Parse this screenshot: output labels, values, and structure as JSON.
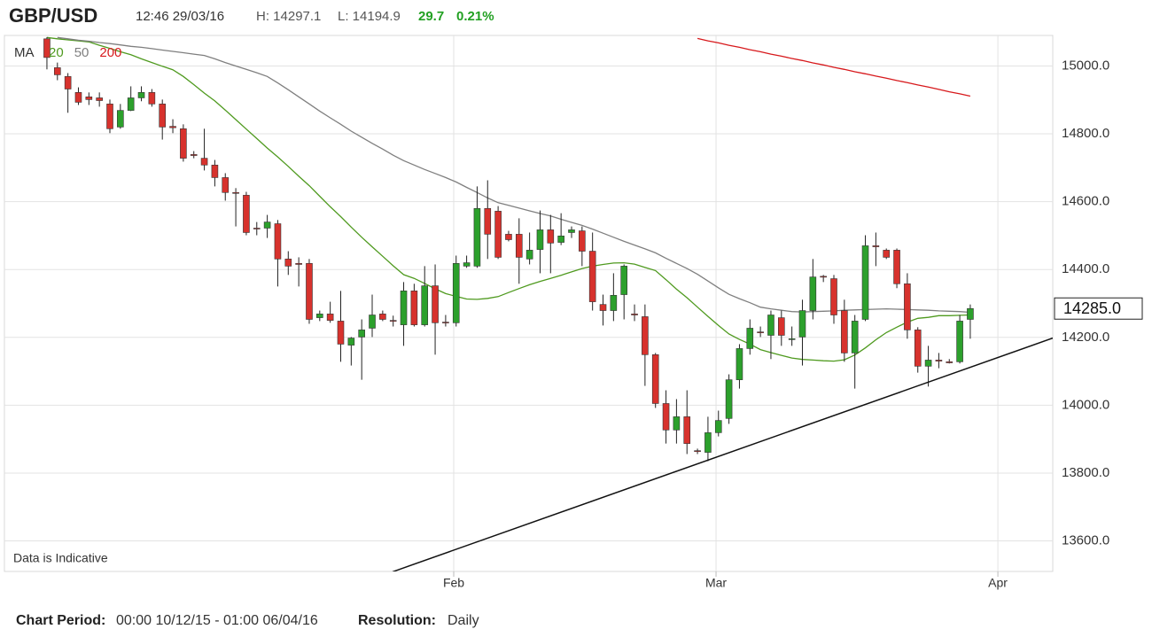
{
  "header": {
    "symbol": "GBP/USD",
    "time": "12:46 29/03/16",
    "high": "H: 14297.1",
    "low": "L: 14194.9",
    "change": "29.7",
    "change_pct": "0.21%"
  },
  "chart_data": {
    "type": "candlestick",
    "ma_label": "MA",
    "note": "Data is Indicative",
    "up_color": "#2ca02c",
    "down_color": "#d7322d",
    "xlim": [
      -4.05,
      95.86
    ],
    "xticks": [
      {
        "value": 38.77,
        "label": "Feb"
      },
      {
        "value": 63.77,
        "label": "Mar"
      },
      {
        "value": 90.63,
        "label": "Apr"
      }
    ],
    "ylim": [
      13510,
      15090
    ],
    "yticks": [
      {
        "value": 13600,
        "label": "13600.0"
      },
      {
        "value": 13800,
        "label": "13800.0"
      },
      {
        "value": 14000,
        "label": "14000.0"
      },
      {
        "value": 14200,
        "label": "14200.0"
      },
      {
        "value": 14400,
        "label": "14400.0"
      },
      {
        "value": 14600,
        "label": "14600.0"
      },
      {
        "value": 14800,
        "label": "14800.0"
      },
      {
        "value": 15000,
        "label": "15000.0"
      }
    ],
    "grid": true,
    "open": [
      15080,
      14995,
      14969,
      14922,
      14909,
      14906,
      14888,
      14820,
      14869,
      14906,
      14922,
      14888,
      14822,
      14815,
      14739,
      14728,
      14708,
      14671,
      14627,
      14619,
      14522,
      14522,
      14535,
      14431,
      14418,
      14418,
      14258,
      14269,
      14248,
      14177,
      14201,
      14227,
      14269,
      14250,
      14237,
      14337,
      14237,
      14352,
      14245,
      14243,
      14410,
      14410,
      14580,
      14572,
      14504,
      14504,
      14431,
      14459,
      14517,
      14480,
      14509,
      14514,
      14454,
      14297,
      14279,
      14326,
      14269,
      14261,
      14149,
      14005,
      13927,
      13966,
      13866,
      13861,
      13919,
      13961,
      14075,
      14167,
      14216,
      14206,
      14258,
      14194,
      14201,
      14279,
      14380,
      14373,
      14279,
      14154,
      14253,
      14470,
      14457,
      14457,
      14358,
      14222,
      14115,
      14133,
      14128,
      14128,
      14253
    ],
    "high": [
      15085,
      15010,
      14979,
      14937,
      14922,
      14922,
      14901,
      14888,
      14940,
      14940,
      14932,
      14901,
      14843,
      14828,
      14749,
      14815,
      14723,
      14684,
      14640,
      14629,
      14540,
      14561,
      14546,
      14454,
      14436,
      14431,
      14279,
      14305,
      14337,
      14201,
      14253,
      14326,
      14279,
      14264,
      14363,
      14358,
      14410,
      14415,
      14266,
      14441,
      14441,
      14645,
      14663,
      14587,
      14514,
      14551,
      14509,
      14574,
      14561,
      14566,
      14527,
      14527,
      14509,
      14326,
      14389,
      14415,
      14297,
      14297,
      14154,
      14044,
      14018,
      14044,
      13872,
      13966,
      13984,
      14091,
      14180,
      14253,
      14232,
      14279,
      14279,
      14232,
      14311,
      14431,
      14384,
      14384,
      14311,
      14266,
      14501,
      14509,
      14462,
      14462,
      14389,
      14230,
      14175,
      14154,
      14136,
      14266,
      14297
    ],
    "low": [
      14990,
      14958,
      14862,
      14885,
      14885,
      14880,
      14802,
      14815,
      14867,
      14896,
      14880,
      14783,
      14802,
      14718,
      14728,
      14692,
      14645,
      14603,
      14527,
      14501,
      14501,
      14493,
      14350,
      14384,
      14350,
      14240,
      14248,
      14243,
      14128,
      14117,
      14075,
      14201,
      14248,
      14232,
      14175,
      14232,
      14232,
      14149,
      14232,
      14232,
      14405,
      14405,
      14431,
      14431,
      14483,
      14358,
      14415,
      14389,
      14389,
      14472,
      14493,
      14410,
      14279,
      14235,
      14248,
      14253,
      14248,
      14057,
      13992,
      13887,
      13887,
      13856,
      13856,
      13835,
      13908,
      13945,
      14049,
      14149,
      14201,
      14136,
      14175,
      14175,
      14117,
      14253,
      14363,
      14240,
      14128,
      14049,
      14248,
      14410,
      14431,
      14345,
      14196,
      14096,
      14055,
      14109,
      14123,
      14123,
      14196
    ],
    "close": [
      15025,
      14974,
      14932,
      14893,
      14901,
      14898,
      14815,
      14869,
      14906,
      14922,
      14888,
      14820,
      14818,
      14728,
      14736,
      14708,
      14671,
      14627,
      14625,
      14509,
      14520,
      14540,
      14431,
      14410,
      14415,
      14253,
      14269,
      14250,
      14180,
      14198,
      14222,
      14266,
      14253,
      14248,
      14337,
      14237,
      14352,
      14243,
      14243,
      14418,
      14420,
      14580,
      14504,
      14436,
      14488,
      14436,
      14457,
      14517,
      14478,
      14499,
      14517,
      14454,
      14305,
      14279,
      14324,
      14410,
      14266,
      14149,
      14005,
      13927,
      13966,
      13887,
      13864,
      13919,
      13955,
      14075,
      14167,
      14227,
      14214,
      14266,
      14206,
      14196,
      14279,
      14378,
      14378,
      14266,
      14154,
      14248,
      14470,
      14467,
      14436,
      14358,
      14222,
      14115,
      14133,
      14130,
      14125,
      14248,
      14285
    ],
    "series": [
      {
        "name": "20",
        "color": "#4f9a1f",
        "values": [
          15084,
          15080,
          15077,
          15074,
          15071,
          15061,
          15052,
          15042,
          15033,
          15021,
          15010,
          14999,
          14989,
          14969,
          14945,
          14920,
          14897,
          14870,
          14842,
          14814,
          14786,
          14758,
          14732,
          14704,
          14675,
          14647,
          14616,
          14585,
          14556,
          14525,
          14495,
          14467,
          14439,
          14411,
          14385,
          14374,
          14359,
          14343,
          14329,
          14321,
          14313,
          14312,
          14315,
          14320,
          14332,
          14344,
          14355,
          14365,
          14374,
          14383,
          14393,
          14403,
          14410,
          14415,
          14419,
          14420,
          14416,
          14406,
          14397,
          14370,
          14342,
          14317,
          14289,
          14262,
          14235,
          14210,
          14194,
          14180,
          14164,
          14155,
          14147,
          14139,
          14135,
          14133,
          14131,
          14130,
          14134,
          14148,
          14169,
          14193,
          14214,
          14230,
          14245,
          14256,
          14259,
          14264,
          14264,
          14265,
          14266
        ]
      },
      {
        "name": "50",
        "color": "#7f7f7f",
        "values": [
          null,
          15084,
          15080,
          15076,
          15073,
          15069,
          15066,
          15062,
          15058,
          15055,
          15051,
          15047,
          15043,
          15039,
          15035,
          15031,
          15021,
          15010,
          15000,
          14990,
          14980,
          14969,
          14950,
          14930,
          14909,
          14888,
          14867,
          14847,
          14828,
          14808,
          14790,
          14772,
          14755,
          14737,
          14721,
          14708,
          14695,
          14683,
          14671,
          14658,
          14642,
          14627,
          14611,
          14597,
          14589,
          14581,
          14573,
          14565,
          14558,
          14548,
          14539,
          14530,
          14519,
          14507,
          14495,
          14483,
          14472,
          14461,
          14449,
          14433,
          14418,
          14403,
          14386,
          14366,
          14346,
          14327,
          14314,
          14302,
          14289,
          14284,
          14280,
          14276,
          14275,
          14276,
          14277,
          14278,
          14280,
          14281,
          14282,
          14283,
          14284,
          14283,
          14282,
          14281,
          14280,
          14278,
          14277,
          14276,
          14274
        ]
      },
      {
        "name": "200",
        "color": "#d7191c",
        "values": [
          null,
          null,
          null,
          null,
          null,
          null,
          null,
          null,
          null,
          null,
          null,
          null,
          null,
          null,
          null,
          null,
          null,
          null,
          null,
          null,
          null,
          null,
          null,
          null,
          null,
          null,
          null,
          null,
          null,
          null,
          null,
          null,
          null,
          null,
          null,
          null,
          null,
          null,
          null,
          null,
          null,
          null,
          null,
          null,
          null,
          null,
          null,
          null,
          null,
          null,
          null,
          null,
          null,
          null,
          null,
          null,
          null,
          null,
          null,
          null,
          null,
          null,
          15081,
          15074,
          15068,
          15061,
          15055,
          15048,
          15042,
          15035,
          15029,
          15022,
          15016,
          15009,
          15003,
          14996,
          14990,
          14983,
          14977,
          14970,
          14964,
          14957,
          14951,
          14944,
          14938,
          14931,
          14924,
          14918,
          14911
        ]
      }
    ],
    "trend_line": {
      "x": [
        32.94,
        95.86
      ],
      "values": [
        13509,
        14198
      ],
      "color": "#111111"
    },
    "last_price": {
      "value": 14285,
      "label": "14285.0"
    }
  },
  "footer": {
    "period_label": "Chart Period:",
    "period": "00:00 10/12/15 - 01:00 06/04/16",
    "resolution_label": "Resolution:",
    "resolution": "Daily"
  }
}
